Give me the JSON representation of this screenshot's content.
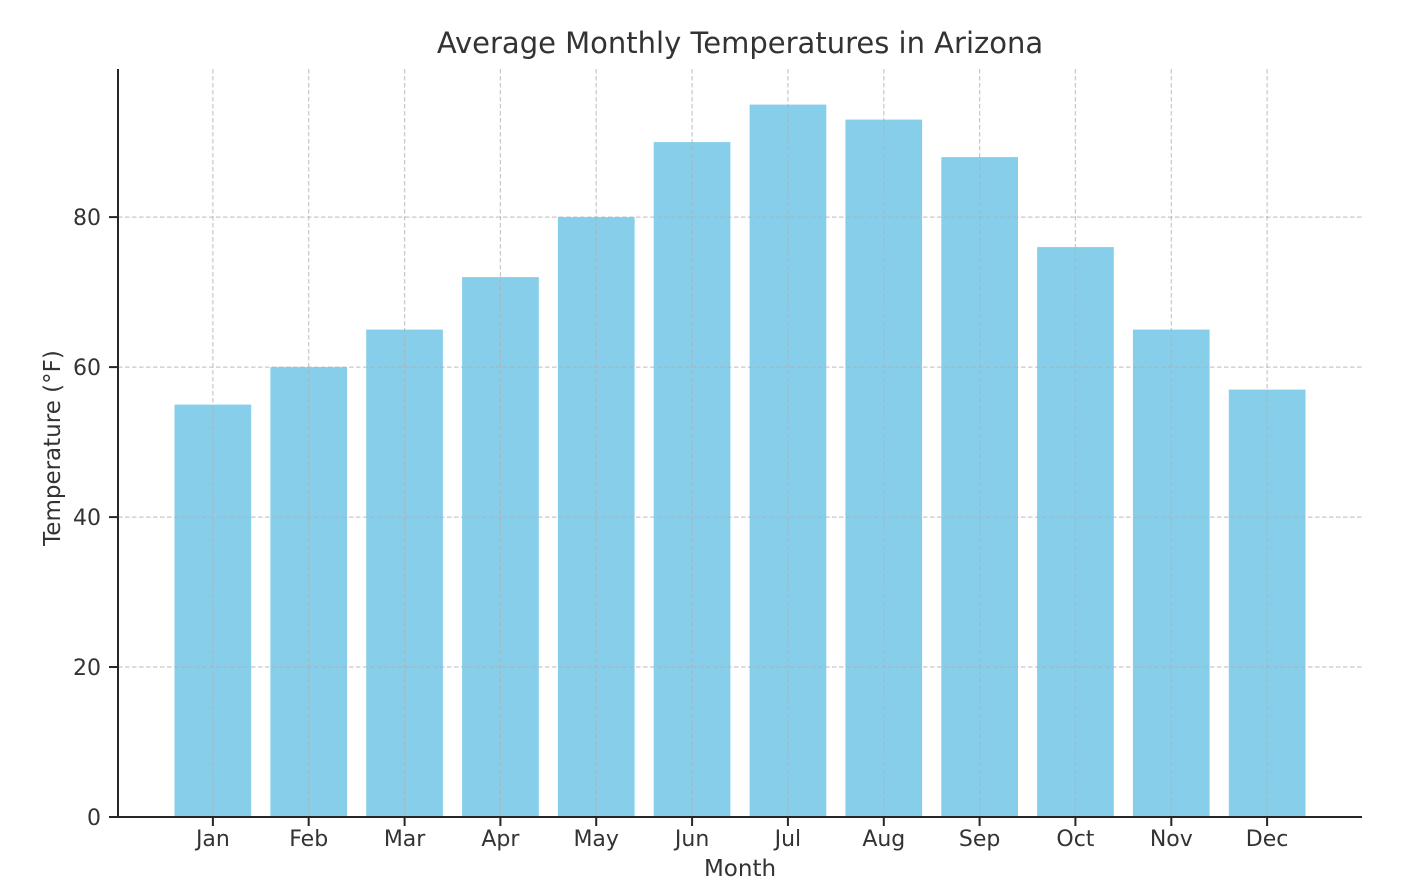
{
  "chart_data": {
    "type": "bar",
    "title": "Average Monthly Temperatures in Arizona",
    "xlabel": "Month",
    "ylabel": "Temperature (°F)",
    "categories": [
      "Jan",
      "Feb",
      "Mar",
      "Apr",
      "May",
      "Jun",
      "Jul",
      "Aug",
      "Sep",
      "Oct",
      "Nov",
      "Dec"
    ],
    "values": [
      55,
      60,
      65,
      72,
      80,
      90,
      95,
      93,
      88,
      76,
      65,
      57
    ],
    "yticks": [
      0,
      20,
      40,
      60,
      80
    ],
    "ylim": [
      0,
      99.75
    ],
    "grid": {
      "style": "dashed",
      "axes": "both",
      "drawn_above_bars": true,
      "color": "#b0b0b0",
      "opacity": 0.7
    },
    "legend": "none",
    "colors": {
      "bar": "#87CEEB",
      "axis": "#262626",
      "text": "#333333",
      "background": "#ffffff"
    }
  }
}
